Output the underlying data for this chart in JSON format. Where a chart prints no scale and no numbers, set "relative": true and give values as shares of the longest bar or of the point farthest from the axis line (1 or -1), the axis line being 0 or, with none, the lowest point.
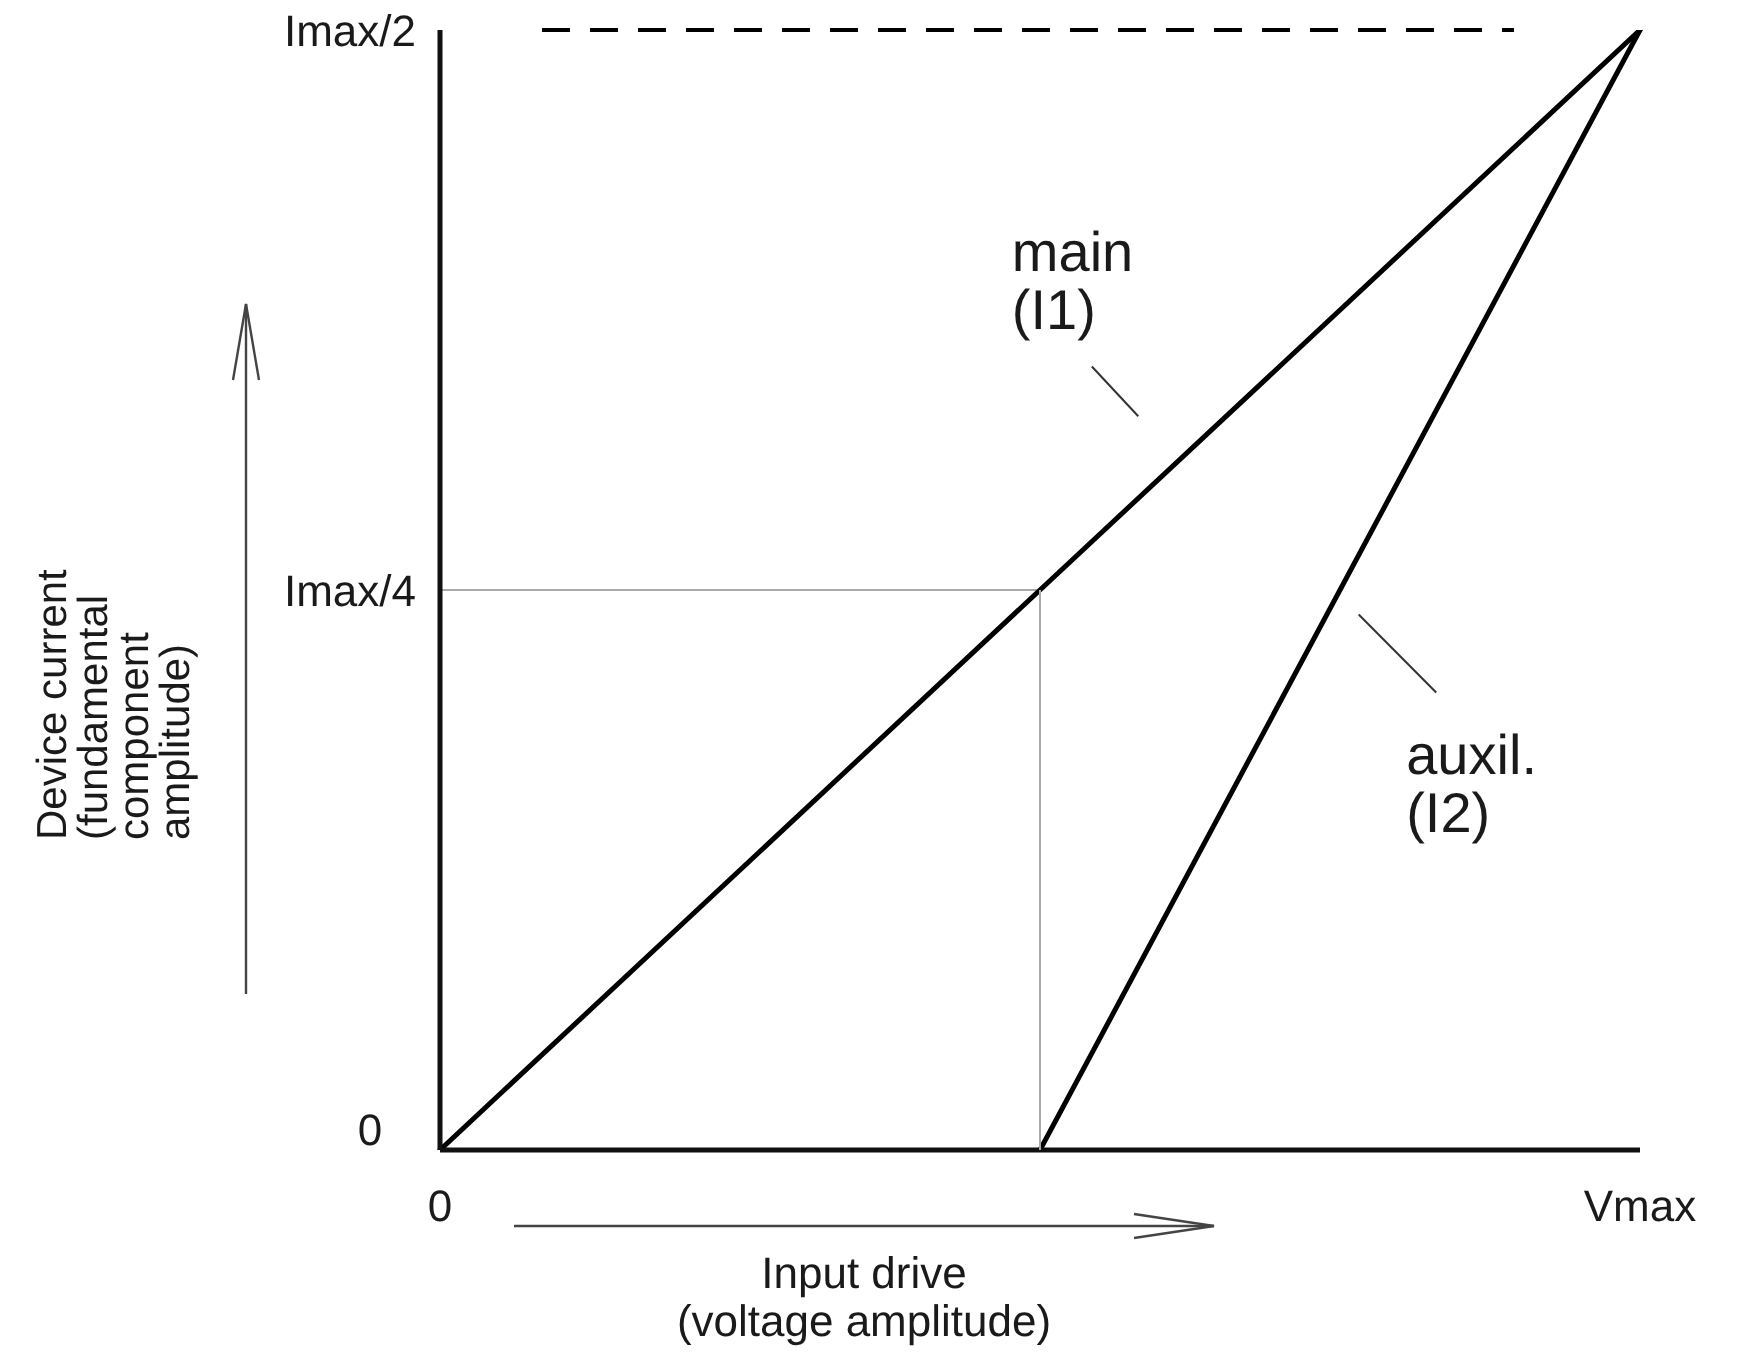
{
  "chart_data": {
    "type": "line",
    "relative": true,
    "xlabel": "Input drive (voltage amplitude)",
    "categories": [
      "0",
      null,
      "Vmax"
    ],
    "series": [
      {
        "name": "main (I1)",
        "color": "#000000",
        "values": [
          0,
          0.5,
          1
        ]
      },
      {
        "name": "auxil. (I2)",
        "color": "#000000",
        "values": [
          null,
          0,
          1
        ]
      }
    ],
    "ref_lines": [
      {
        "axis": "y",
        "value": 0.5,
        "label": "Imax/4",
        "color": "#aaaaaa"
      },
      {
        "axis": "y",
        "value": 1,
        "label": "Imax/2",
        "color": "#000000",
        "line_style": "dashed"
      }
    ],
    "annotations": [
      "0",
      "Device current (fundamental component amplitude)"
    ]
  }
}
